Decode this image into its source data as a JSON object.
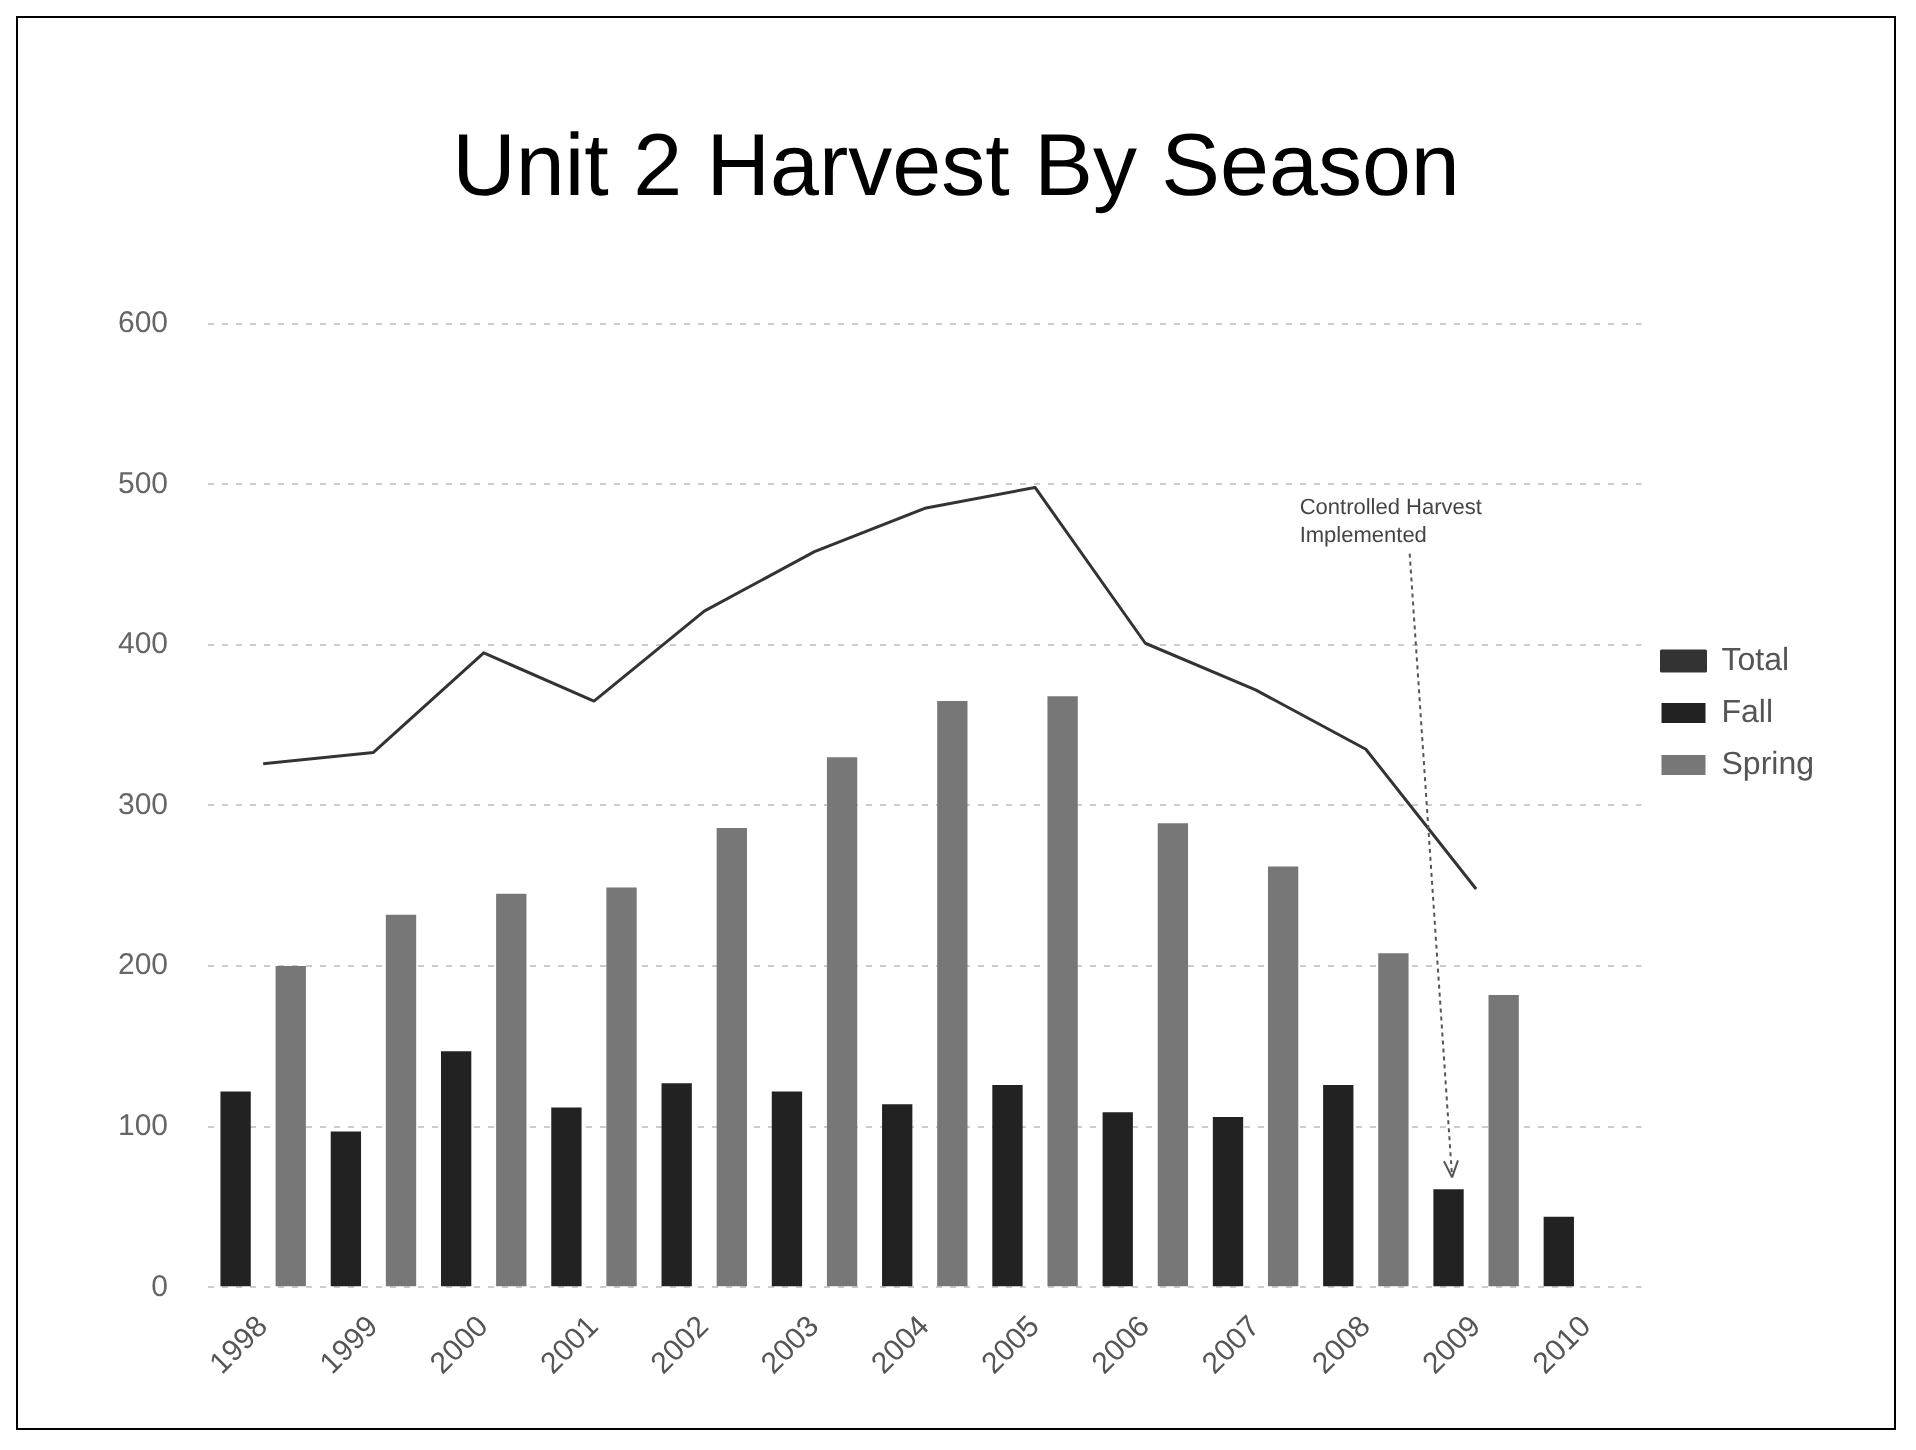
{
  "chart_data": {
    "type": "bar",
    "title": "Unit 2 Harvest By Season",
    "categories": [
      "1998",
      "1999",
      "2000",
      "2001",
      "2002",
      "2003",
      "2004",
      "2005",
      "2006",
      "2007",
      "2008",
      "2009",
      "2010"
    ],
    "series": [
      {
        "name": "Fall",
        "color": "#222222",
        "values": [
          122,
          97,
          147,
          112,
          127,
          122,
          114,
          126,
          109,
          106,
          126,
          61,
          44
        ]
      },
      {
        "name": "Spring",
        "color": "#777777",
        "values": [
          200,
          232,
          245,
          249,
          286,
          330,
          365,
          368,
          289,
          262,
          208,
          182,
          null
        ]
      },
      {
        "name": "Total",
        "type": "line",
        "color": "#333333",
        "values": [
          326,
          333,
          395,
          365,
          421,
          458,
          485,
          498,
          401,
          372,
          335,
          248,
          null
        ]
      }
    ],
    "ylim": [
      0,
      600
    ],
    "yticks": [
      0,
      100,
      200,
      300,
      400,
      500,
      600
    ],
    "grid": "y",
    "legend": "right",
    "annotations": [
      {
        "text": "Controlled Harvest Implemented",
        "x": "2009",
        "y": 61
      }
    ]
  }
}
